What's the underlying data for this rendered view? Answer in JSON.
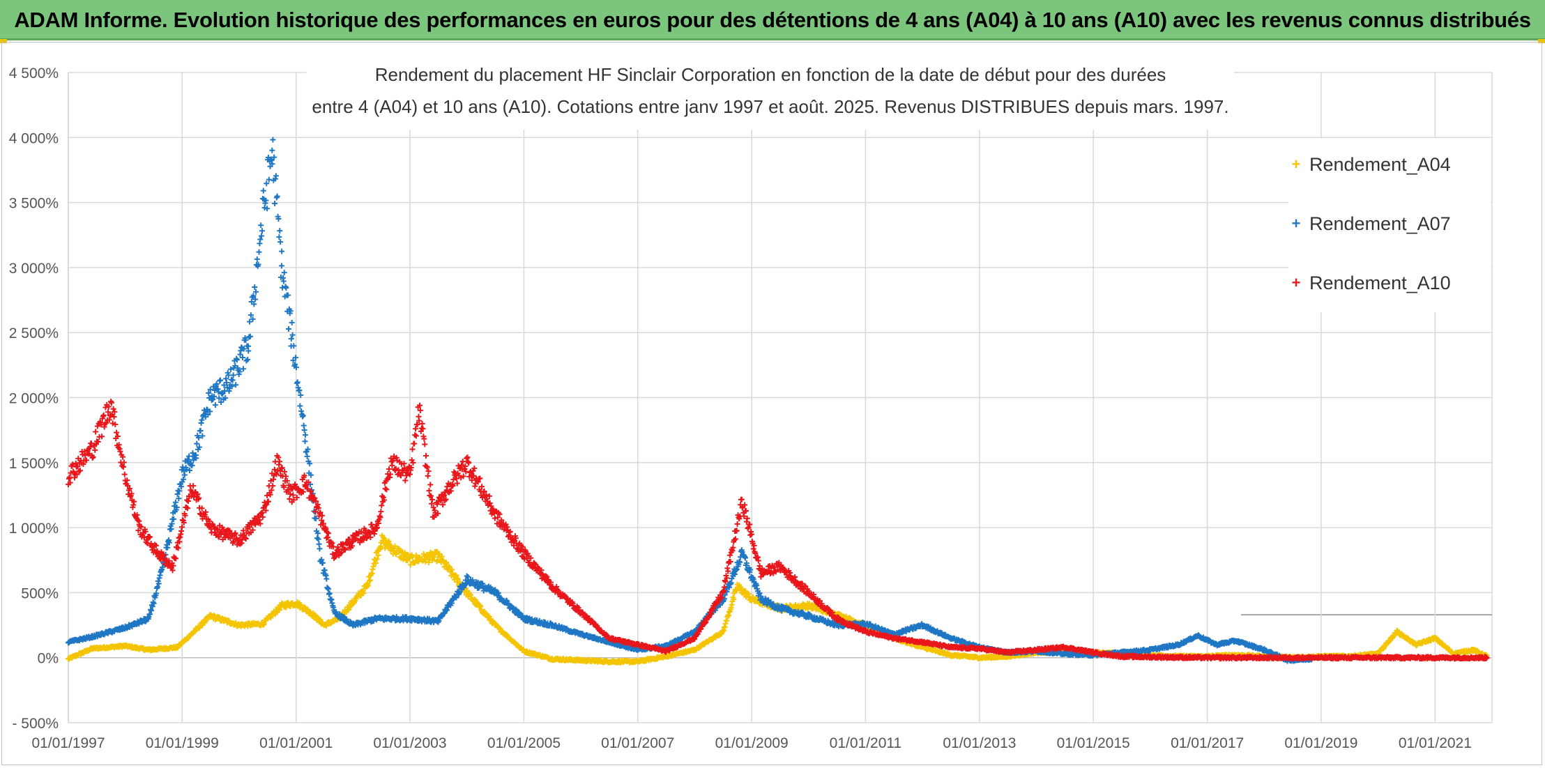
{
  "header": {
    "banner_title": "ADAM Informe. Evolution historique des performances en euros pour des détentions de 4 ans (A04) à 10 ans (A10) avec les revenus connus distribués"
  },
  "chart_data": {
    "type": "scatter",
    "title_line1": "Rendement du placement HF Sinclair Corporation en fonction de la date de début pour des durées",
    "title_line2": "entre 4 (A04) et 10 ans (A10). Cotations entre janv 1997 et août. 2025. Revenus DISTRIBUES depuis mars. 1997.",
    "xlabel": "",
    "ylabel": "",
    "x_ticks": [
      "01/01/1997",
      "01/01/1999",
      "01/01/2001",
      "01/01/2003",
      "01/01/2005",
      "01/01/2007",
      "01/01/2009",
      "01/01/2011",
      "01/01/2013",
      "01/01/2015",
      "01/01/2017",
      "01/01/2019",
      "01/01/2021"
    ],
    "y_ticks": [
      "- 500%",
      "0%",
      "500%",
      "1 000%",
      "1 500%",
      "2 000%",
      "2 500%",
      "3 000%",
      "3 500%",
      "4 000%",
      "4 500%"
    ],
    "xlim": [
      "1997-01-01",
      "2022-01-01"
    ],
    "ylim": [
      -500,
      4500
    ],
    "grid": true,
    "legend_position": "top-right",
    "marker": "+",
    "series": [
      {
        "name": "Rendement_A04",
        "color": "#f5c400",
        "points": [
          [
            "1997-01-01",
            -10
          ],
          [
            "1997-06-01",
            70
          ],
          [
            "1998-01-01",
            90
          ],
          [
            "1998-06-01",
            60
          ],
          [
            "1998-12-01",
            80
          ],
          [
            "1999-03-01",
            180
          ],
          [
            "1999-07-01",
            320
          ],
          [
            "2000-01-01",
            250
          ],
          [
            "2000-06-01",
            260
          ],
          [
            "2000-10-01",
            400
          ],
          [
            "2001-01-01",
            420
          ],
          [
            "2001-04-01",
            350
          ],
          [
            "2001-07-01",
            250
          ],
          [
            "2001-10-01",
            300
          ],
          [
            "2002-04-01",
            550
          ],
          [
            "2002-07-01",
            900
          ],
          [
            "2003-01-01",
            750
          ],
          [
            "2003-07-01",
            780
          ],
          [
            "2004-01-01",
            500
          ],
          [
            "2004-07-01",
            250
          ],
          [
            "2005-01-01",
            50
          ],
          [
            "2005-07-01",
            -10
          ],
          [
            "2006-01-01",
            -20
          ],
          [
            "2006-07-01",
            -30
          ],
          [
            "2007-01-01",
            -30
          ],
          [
            "2007-07-01",
            10
          ],
          [
            "2008-01-01",
            60
          ],
          [
            "2008-07-01",
            200
          ],
          [
            "2008-10-01",
            550
          ],
          [
            "2009-01-01",
            450
          ],
          [
            "2009-07-01",
            380
          ],
          [
            "2010-01-01",
            400
          ],
          [
            "2010-07-01",
            330
          ],
          [
            "2011-01-01",
            250
          ],
          [
            "2011-07-01",
            150
          ],
          [
            "2012-01-01",
            80
          ],
          [
            "2012-07-01",
            20
          ],
          [
            "2013-01-01",
            0
          ],
          [
            "2013-07-01",
            10
          ],
          [
            "2014-01-01",
            40
          ],
          [
            "2014-07-01",
            50
          ],
          [
            "2015-01-01",
            40
          ],
          [
            "2015-07-01",
            30
          ],
          [
            "2016-01-01",
            20
          ],
          [
            "2016-07-01",
            10
          ],
          [
            "2017-01-01",
            10
          ],
          [
            "2017-07-01",
            20
          ],
          [
            "2018-01-01",
            10
          ],
          [
            "2018-07-01",
            0
          ],
          [
            "2019-01-01",
            10
          ],
          [
            "2019-07-01",
            10
          ],
          [
            "2020-01-01",
            30
          ],
          [
            "2020-05-01",
            200
          ],
          [
            "2020-09-01",
            100
          ],
          [
            "2021-01-01",
            150
          ],
          [
            "2021-05-01",
            30
          ],
          [
            "2021-09-01",
            60
          ],
          [
            "2021-12-01",
            10
          ]
        ]
      },
      {
        "name": "Rendement_A07",
        "color": "#1f77c4",
        "points": [
          [
            "1997-01-01",
            120
          ],
          [
            "1997-06-01",
            160
          ],
          [
            "1998-01-01",
            230
          ],
          [
            "1998-06-01",
            300
          ],
          [
            "1998-09-01",
            700
          ],
          [
            "1999-01-01",
            1400
          ],
          [
            "1999-04-01",
            1600
          ],
          [
            "1999-07-01",
            2000
          ],
          [
            "1999-11-01",
            2100
          ],
          [
            "2000-03-01",
            2400
          ],
          [
            "2000-06-01",
            3400
          ],
          [
            "2000-08-01",
            3900
          ],
          [
            "2000-10-01",
            3000
          ],
          [
            "2000-12-01",
            2500
          ],
          [
            "2001-03-01",
            1700
          ],
          [
            "2001-06-01",
            800
          ],
          [
            "2001-09-01",
            350
          ],
          [
            "2002-01-01",
            250
          ],
          [
            "2002-06-01",
            300
          ],
          [
            "2003-01-01",
            300
          ],
          [
            "2003-07-01",
            280
          ],
          [
            "2004-01-01",
            600
          ],
          [
            "2004-07-01",
            500
          ],
          [
            "2005-01-01",
            300
          ],
          [
            "2005-07-01",
            250
          ],
          [
            "2006-01-01",
            180
          ],
          [
            "2006-07-01",
            120
          ],
          [
            "2007-01-01",
            60
          ],
          [
            "2007-07-01",
            90
          ],
          [
            "2008-01-01",
            200
          ],
          [
            "2008-07-01",
            450
          ],
          [
            "2008-11-01",
            800
          ],
          [
            "2009-03-01",
            450
          ],
          [
            "2009-07-01",
            380
          ],
          [
            "2010-01-01",
            320
          ],
          [
            "2010-07-01",
            250
          ],
          [
            "2011-01-01",
            260
          ],
          [
            "2011-07-01",
            180
          ],
          [
            "2012-01-01",
            250
          ],
          [
            "2012-07-01",
            150
          ],
          [
            "2013-01-01",
            80
          ],
          [
            "2013-07-01",
            40
          ],
          [
            "2014-01-01",
            50
          ],
          [
            "2014-07-01",
            30
          ],
          [
            "2015-01-01",
            20
          ],
          [
            "2015-07-01",
            40
          ],
          [
            "2016-01-01",
            60
          ],
          [
            "2016-07-01",
            100
          ],
          [
            "2016-11-01",
            170
          ],
          [
            "2017-03-01",
            100
          ],
          [
            "2017-07-01",
            130
          ],
          [
            "2018-01-01",
            60
          ],
          [
            "2018-06-01",
            -20
          ],
          [
            "2018-11-01",
            -10
          ]
        ]
      },
      {
        "name": "Rendement_A10",
        "color": "#e8171b",
        "points": [
          [
            "1997-01-01",
            1400
          ],
          [
            "1997-06-01",
            1600
          ],
          [
            "1997-10-01",
            1950
          ],
          [
            "1998-01-01",
            1400
          ],
          [
            "1998-04-01",
            1000
          ],
          [
            "1998-08-01",
            800
          ],
          [
            "1998-11-01",
            700
          ],
          [
            "1999-03-01",
            1300
          ],
          [
            "1999-07-01",
            1000
          ],
          [
            "2000-01-01",
            900
          ],
          [
            "2000-06-01",
            1100
          ],
          [
            "2000-09-01",
            1500
          ],
          [
            "2000-12-01",
            1250
          ],
          [
            "2001-03-01",
            1350
          ],
          [
            "2001-06-01",
            1100
          ],
          [
            "2001-09-01",
            800
          ],
          [
            "2002-01-01",
            900
          ],
          [
            "2002-06-01",
            1000
          ],
          [
            "2002-09-01",
            1500
          ],
          [
            "2003-01-01",
            1400
          ],
          [
            "2003-03-01",
            1900
          ],
          [
            "2003-06-01",
            1100
          ],
          [
            "2003-09-01",
            1300
          ],
          [
            "2004-01-01",
            1500
          ],
          [
            "2004-07-01",
            1100
          ],
          [
            "2005-01-01",
            800
          ],
          [
            "2005-07-01",
            550
          ],
          [
            "2006-01-01",
            350
          ],
          [
            "2006-07-01",
            150
          ],
          [
            "2007-01-01",
            100
          ],
          [
            "2007-07-01",
            50
          ],
          [
            "2008-01-01",
            150
          ],
          [
            "2008-07-01",
            500
          ],
          [
            "2008-11-01",
            1200
          ],
          [
            "2009-03-01",
            650
          ],
          [
            "2009-07-01",
            700
          ],
          [
            "2010-01-01",
            500
          ],
          [
            "2010-07-01",
            300
          ],
          [
            "2011-01-01",
            200
          ],
          [
            "2011-07-01",
            150
          ],
          [
            "2012-01-01",
            120
          ],
          [
            "2012-07-01",
            80
          ],
          [
            "2013-01-01",
            70
          ],
          [
            "2013-07-01",
            40
          ],
          [
            "2014-01-01",
            60
          ],
          [
            "2014-07-01",
            80
          ],
          [
            "2015-01-01",
            40
          ],
          [
            "2015-07-01",
            10
          ],
          [
            "2016-01-01",
            5
          ],
          [
            "2017-01-01",
            0
          ],
          [
            "2018-01-01",
            0
          ],
          [
            "2019-01-01",
            0
          ],
          [
            "2020-01-01",
            0
          ],
          [
            "2021-01-01",
            0
          ],
          [
            "2021-12-01",
            0
          ]
        ]
      }
    ]
  }
}
